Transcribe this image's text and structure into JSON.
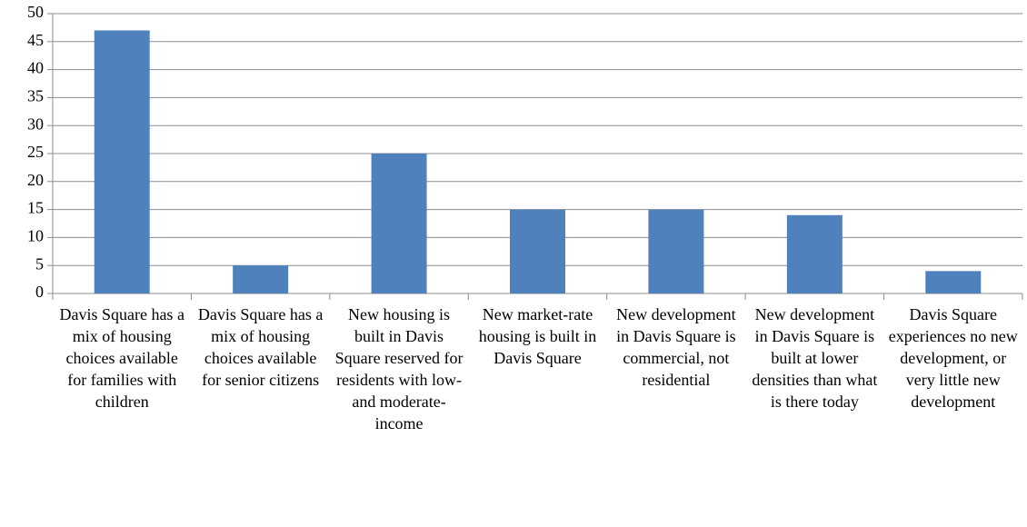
{
  "chart_data": {
    "type": "bar",
    "categories": [
      "Davis Square has a mix of housing choices available for families with children",
      "Davis Square has a mix of housing choices available for senior citizens",
      "New housing is built in Davis Square reserved for residents with low- and moderate-income",
      "New market-rate housing is built in Davis Square",
      "New development in Davis Square is commercial, not residential",
      "New development in Davis Square is built at lower densities than what is there today",
      "Davis Square experiences no new development, or very little new development"
    ],
    "values": [
      47,
      5,
      25,
      15,
      15,
      14,
      4
    ],
    "color": "#4f81bd",
    "ylim": [
      0,
      50
    ],
    "yticks": [
      0,
      5,
      10,
      15,
      20,
      25,
      30,
      35,
      40,
      45,
      50
    ],
    "grid": true
  }
}
